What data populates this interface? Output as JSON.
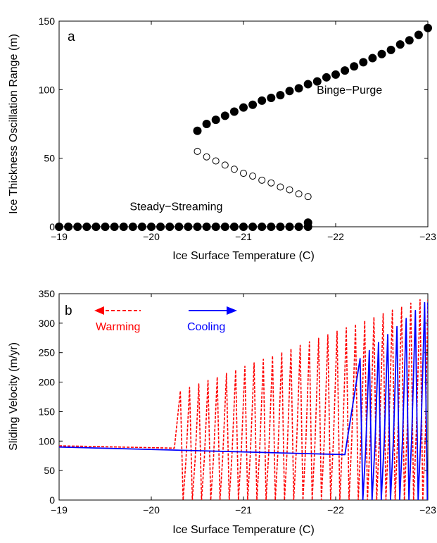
{
  "chart_data": [
    {
      "type": "scatter",
      "panel_label": "a",
      "xlabel": "Ice Surface Temperature (C)",
      "ylabel": "Ice Thickness Oscillation Range (m)",
      "xlim": [
        -19,
        -23
      ],
      "x_axis_reversed": true,
      "ylim": [
        0,
        150
      ],
      "xticks": [
        -19,
        -20,
        -21,
        -22,
        -23
      ],
      "yticks": [
        0,
        50,
        100,
        150
      ],
      "xtick_labels": [
        "−19",
        "−20",
        "−21",
        "−22",
        "−23"
      ],
      "ytick_labels": [
        "0",
        "50",
        "100",
        "150"
      ],
      "grid": false,
      "annotations": [
        {
          "text": "Binge−Purge",
          "x": -22.15,
          "y": 97
        },
        {
          "text": "Steady−Streaming",
          "x": -20.27,
          "y": 12
        }
      ],
      "series": [
        {
          "marker": "filled-circle",
          "x": [
            -20.5,
            -20.6,
            -20.7,
            -20.8,
            -20.9,
            -21.0,
            -21.1,
            -21.2,
            -21.3,
            -21.4,
            -21.5,
            -21.6,
            -21.7,
            -21.8,
            -21.9,
            -22.0,
            -22.1,
            -22.2,
            -22.3,
            -22.4,
            -22.5,
            -22.6,
            -22.7,
            -22.8,
            -22.9,
            -23.0
          ],
          "values": [
            70,
            75,
            78,
            81,
            84,
            87,
            89,
            92,
            94,
            96,
            99,
            101,
            104,
            106,
            109,
            111,
            114,
            117,
            120,
            123,
            126,
            129,
            133,
            136,
            140,
            145
          ]
        },
        {
          "marker": "open-circle",
          "x": [
            -20.5,
            -20.6,
            -20.7,
            -20.8,
            -20.9,
            -21.0,
            -21.1,
            -21.2,
            -21.3,
            -21.4,
            -21.5,
            -21.6,
            -21.7
          ],
          "values": [
            55,
            51,
            48,
            45,
            42,
            39,
            37,
            34,
            32,
            29,
            27,
            24,
            22
          ]
        },
        {
          "marker": "filled-circle",
          "x": [
            -19.0,
            -19.1,
            -19.2,
            -19.3,
            -19.4,
            -19.5,
            -19.6,
            -19.7,
            -19.8,
            -19.9,
            -20.0,
            -20.1,
            -20.2,
            -20.3,
            -20.4,
            -20.5,
            -20.6,
            -20.7,
            -20.8,
            -20.9,
            -21.0,
            -21.1,
            -21.2,
            -21.3,
            -21.4,
            -21.5,
            -21.6,
            -21.7,
            -21.7
          ],
          "values": [
            0,
            0,
            0,
            0,
            0,
            0,
            0,
            0,
            0,
            0,
            0,
            0,
            0,
            0,
            0,
            0,
            0,
            0,
            0,
            0,
            0,
            0,
            0,
            0,
            0,
            0,
            0,
            0,
            3
          ]
        }
      ]
    },
    {
      "type": "line",
      "panel_label": "b",
      "xlabel": "Ice Surface Temperature (C)",
      "ylabel": "Sliding Velocity (m/yr)",
      "xlim": [
        -19,
        -23
      ],
      "x_axis_reversed": true,
      "ylim": [
        0,
        350
      ],
      "xticks": [
        -19,
        -20,
        -21,
        -22,
        -23
      ],
      "yticks": [
        0,
        50,
        100,
        150,
        200,
        250,
        300,
        350
      ],
      "xtick_labels": [
        "−19",
        "−20",
        "−21",
        "−22",
        "−23"
      ],
      "ytick_labels": [
        "0",
        "50",
        "100",
        "150",
        "200",
        "250",
        "300",
        "350"
      ],
      "grid": false,
      "legend": {
        "placement": "top-left",
        "style": "arrows"
      },
      "series": [
        {
          "name": "Warming",
          "color": "#ff0000",
          "style": "dashed",
          "direction_arrow": "left",
          "steady_x": [
            -19.0,
            -20.25
          ],
          "steady_values": [
            92,
            88
          ],
          "onset_x": -20.3,
          "end_x": -23.0,
          "oscillation_period_x": 0.1,
          "oscillation_min": 0,
          "oscillation_peak_start": 185,
          "oscillation_peak_end": 340
        },
        {
          "name": "Cooling",
          "color": "#0000ff",
          "style": "solid",
          "direction_arrow": "right",
          "steady_x": [
            -19.0,
            -22.1
          ],
          "steady_values": [
            90,
            77
          ],
          "onset_x": -22.25,
          "end_x": -23.0,
          "oscillation_period_x": 0.1,
          "oscillation_min": 0,
          "oscillation_peak_start": 240,
          "oscillation_peak_end": 335
        }
      ]
    }
  ]
}
